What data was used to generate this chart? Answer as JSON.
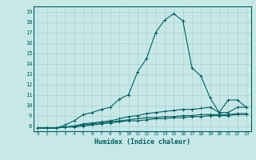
{
  "xlabel": "Humidex (Indice chaleur)",
  "background_color": "#c8e8e8",
  "line_color": "#006060",
  "grid_color": "#a8d0d0",
  "xlim": [
    -0.5,
    23.5
  ],
  "ylim": [
    7.5,
    19.5
  ],
  "xticks": [
    0,
    1,
    2,
    3,
    4,
    5,
    6,
    7,
    8,
    9,
    10,
    11,
    12,
    13,
    14,
    15,
    16,
    17,
    18,
    19,
    20,
    21,
    22,
    23
  ],
  "yticks": [
    8,
    9,
    10,
    11,
    12,
    13,
    14,
    15,
    16,
    17,
    18,
    19
  ],
  "lines": [
    {
      "x": [
        0,
        1,
        2,
        3,
        4,
        5,
        6,
        7,
        8,
        9,
        10,
        11,
        12,
        13,
        14,
        15,
        16,
        17,
        18,
        19,
        20,
        21,
        22,
        23
      ],
      "y": [
        7.8,
        7.8,
        7.8,
        8.1,
        8.5,
        9.1,
        9.3,
        9.6,
        9.8,
        10.6,
        11.0,
        13.2,
        14.5,
        17.0,
        18.2,
        18.8,
        18.1,
        13.6,
        12.8,
        10.7,
        9.3,
        10.5,
        10.5,
        9.8
      ]
    },
    {
      "x": [
        0,
        1,
        2,
        3,
        4,
        5,
        6,
        7,
        8,
        9,
        10,
        11,
        12,
        13,
        14,
        15,
        16,
        17,
        18,
        19,
        20,
        21,
        22,
        23
      ],
      "y": [
        7.8,
        7.8,
        7.8,
        7.9,
        8.0,
        8.2,
        8.3,
        8.4,
        8.5,
        8.7,
        8.9,
        9.0,
        9.2,
        9.3,
        9.4,
        9.5,
        9.6,
        9.6,
        9.7,
        9.8,
        9.3,
        9.3,
        9.8,
        9.8
      ]
    },
    {
      "x": [
        0,
        1,
        2,
        3,
        4,
        5,
        6,
        7,
        8,
        9,
        10,
        11,
        12,
        13,
        14,
        15,
        16,
        17,
        18,
        19,
        20,
        21,
        22,
        23
      ],
      "y": [
        7.8,
        7.8,
        7.8,
        7.9,
        8.0,
        8.1,
        8.2,
        8.3,
        8.4,
        8.5,
        8.6,
        8.7,
        8.8,
        8.8,
        8.9,
        8.9,
        9.0,
        9.0,
        9.1,
        9.1,
        9.1,
        9.1,
        9.2,
        9.2
      ]
    },
    {
      "x": [
        0,
        1,
        2,
        3,
        4,
        5,
        6,
        7,
        8,
        9,
        10,
        11,
        12,
        13,
        14,
        15,
        16,
        17,
        18,
        19,
        20,
        21,
        22,
        23
      ],
      "y": [
        7.8,
        7.8,
        7.8,
        7.9,
        7.9,
        8.0,
        8.1,
        8.2,
        8.3,
        8.4,
        8.5,
        8.5,
        8.6,
        8.7,
        8.7,
        8.8,
        8.8,
        8.9,
        8.9,
        9.0,
        9.0,
        9.0,
        9.1,
        9.1
      ]
    }
  ]
}
